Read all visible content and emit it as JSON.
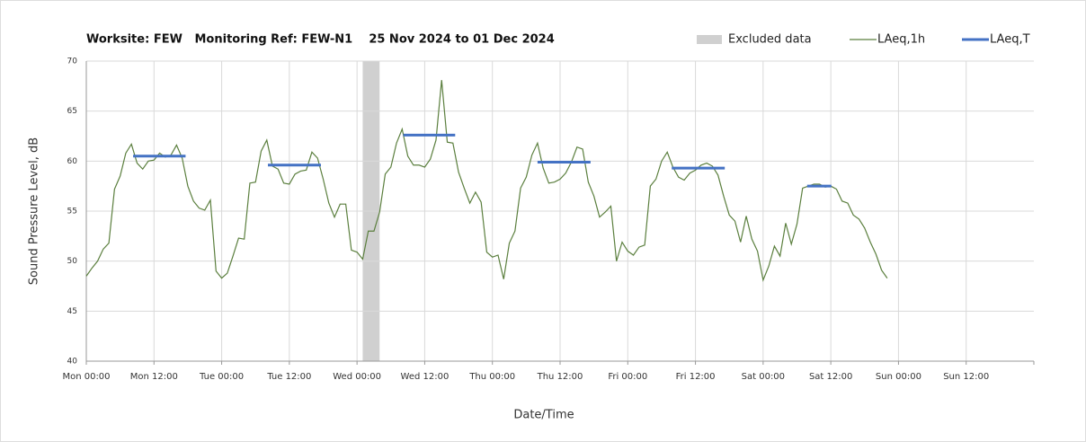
{
  "chart_data": {
    "type": "line",
    "title": "Worksite: FEW   Monitoring Ref: FEW-N1    25 Nov 2024 to 01 Dec 2024",
    "x_label": "Date/Time",
    "y_label": "Sound Pressure Level, dB",
    "xlim": [
      0,
      168
    ],
    "xticks": [
      {
        "value": 0,
        "label": "Mon 00:00"
      },
      {
        "value": 12,
        "label": "Mon 12:00"
      },
      {
        "value": 24,
        "label": "Tue 00:00"
      },
      {
        "value": 36,
        "label": "Tue 12:00"
      },
      {
        "value": 48,
        "label": "Wed 00:00"
      },
      {
        "value": 60,
        "label": "Wed 12:00"
      },
      {
        "value": 72,
        "label": "Thu 00:00"
      },
      {
        "value": 84,
        "label": "Thu 12:00"
      },
      {
        "value": 96,
        "label": "Fri 00:00"
      },
      {
        "value": 108,
        "label": "Fri 12:00"
      },
      {
        "value": 120,
        "label": "Sat 00:00"
      },
      {
        "value": 132,
        "label": "Sat 12:00"
      },
      {
        "value": 144,
        "label": "Sun 00:00"
      },
      {
        "value": 156,
        "label": "Sun 12:00"
      }
    ],
    "ylim": [
      40,
      70
    ],
    "yticks": [
      40,
      45,
      50,
      55,
      60,
      65,
      70
    ],
    "grid": true,
    "excluded": {
      "name": "Excluded data",
      "color": "#d0d0d0",
      "ranges": [
        [
          49,
          52
        ]
      ]
    },
    "series": [
      {
        "name": "LAeq,1h",
        "color": "#5b7f3e",
        "x": [
          0,
          1,
          2,
          3,
          4,
          5,
          6,
          7,
          8,
          9,
          10,
          11,
          12,
          13,
          14,
          15,
          16,
          17,
          18,
          19,
          20,
          21,
          22,
          23,
          24,
          25,
          26,
          27,
          28,
          29,
          30,
          31,
          32,
          33,
          34,
          35,
          36,
          37,
          38,
          39,
          40,
          41,
          42,
          43,
          44,
          45,
          46,
          47,
          48,
          49,
          50,
          51,
          52,
          53,
          54,
          55,
          56,
          57,
          58,
          59,
          60,
          61,
          62,
          63,
          64,
          65,
          66,
          67,
          68,
          69,
          70,
          71,
          72,
          73,
          74,
          75,
          76,
          77,
          78,
          79,
          80,
          81,
          82,
          83,
          84,
          85,
          86,
          87,
          88,
          89,
          90,
          91,
          92,
          93,
          94,
          95,
          96,
          97,
          98,
          99,
          100,
          101,
          102,
          103,
          104,
          105,
          106,
          107,
          108,
          109,
          110,
          111,
          112,
          113,
          114,
          115,
          116,
          117,
          118,
          119,
          120,
          121,
          122,
          123,
          124,
          125,
          126,
          127,
          128,
          129,
          130,
          131,
          132,
          133,
          134,
          135,
          136,
          137,
          138,
          139,
          140,
          141,
          142
        ],
        "values": [
          48.5,
          49.3,
          50,
          51.2,
          51.8,
          57.2,
          58.5,
          60.8,
          61.7,
          59.8,
          59.2,
          60,
          60.1,
          60.8,
          60.4,
          60.6,
          61.6,
          60.3,
          57.5,
          56,
          55.3,
          55.1,
          56.1,
          49,
          48.3,
          48.8,
          50.5,
          52.3,
          52.2,
          57.8,
          57.9,
          61,
          62.1,
          59.5,
          59.2,
          57.8,
          57.7,
          58.7,
          59,
          59.1,
          60.9,
          60.3,
          58.2,
          55.8,
          54.4,
          55.7,
          55.7,
          51.1,
          50.9,
          50.2,
          53,
          53,
          54.9,
          58.7,
          59.4,
          61.8,
          63.2,
          60.5,
          59.6,
          59.6,
          59.4,
          60.2,
          62.1,
          68.1,
          61.9,
          61.8,
          58.9,
          57.3,
          55.8,
          56.9,
          55.9,
          50.9,
          50.4,
          50.6,
          48.2,
          51.8,
          53,
          57.3,
          58.4,
          60.6,
          61.8,
          59.3,
          57.8,
          57.9,
          58.2,
          58.8,
          59.9,
          61.4,
          61.2,
          57.9,
          56.5,
          54.4,
          54.9,
          55.5,
          50,
          51.9,
          51,
          50.6,
          51.4,
          51.6,
          57.5,
          58.2,
          60,
          60.9,
          59.4,
          58.4,
          58.1,
          58.8,
          59.1,
          59.6,
          59.8,
          59.5,
          58.6,
          56.5,
          54.6,
          54,
          51.9,
          54.5,
          52.2,
          51,
          48.1,
          49.5,
          51.5,
          50.5,
          53.8,
          51.7,
          53.7,
          57.3,
          57.5,
          57.7,
          57.7,
          57.4,
          57.5,
          57.2,
          56,
          55.8,
          54.6,
          54.2,
          53.3,
          51.9,
          50.7,
          49.1,
          48.3
        ]
      }
    ],
    "periods": {
      "name": "LAeq,T",
      "color": "#4472c4",
      "segments": [
        {
          "x": [
            8.3,
            17.6
          ],
          "value": 60.5
        },
        {
          "x": [
            32.2,
            41.6
          ],
          "value": 59.6
        },
        {
          "x": [
            56.2,
            65.4
          ],
          "value": 62.6
        },
        {
          "x": [
            80,
            89.4
          ],
          "value": 59.9
        },
        {
          "x": [
            103.8,
            113.2
          ],
          "value": 59.3
        },
        {
          "x": [
            127.8,
            132.1
          ],
          "value": 57.5
        }
      ]
    }
  }
}
